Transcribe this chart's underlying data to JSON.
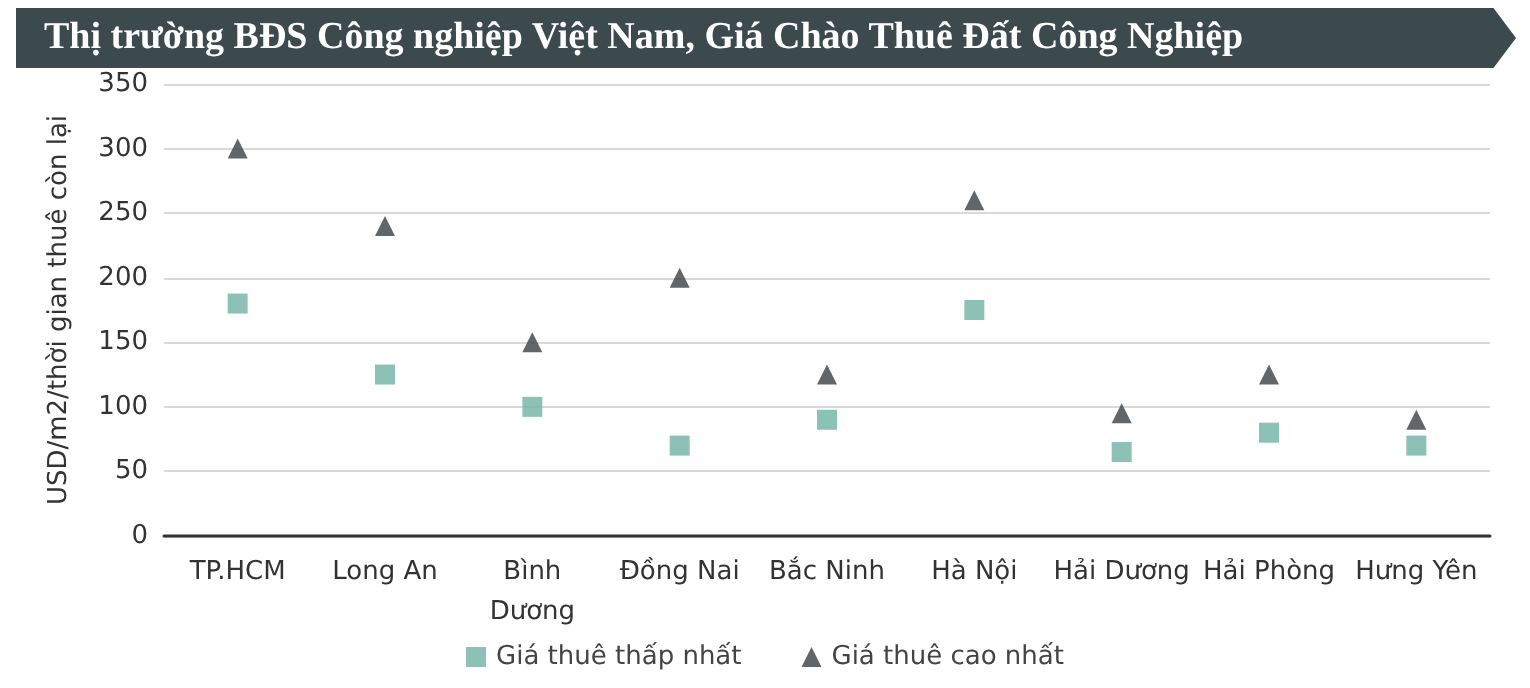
{
  "chart_data": {
    "type": "scatter",
    "title": "Thị trường BĐS Công nghiệp Việt Nam, Giá Chào Thuê Đất Công Nghiệp",
    "ylabel": "USD/m2/thời gian thuê còn lại",
    "categories": [
      "TP.HCM",
      "Long An",
      "Bình\nDương",
      "Đồng Nai",
      "Bắc Ninh",
      "Hà Nội",
      "Hải Dương",
      "Hải Phòng",
      "Hưng Yên"
    ],
    "series": [
      {
        "name": "Giá thuê thấp nhất",
        "color": "#6fb3a3",
        "marker": "square",
        "values": [
          180,
          125,
          100,
          70,
          90,
          175,
          65,
          80,
          70
        ]
      },
      {
        "name": "Giá thuê cao nhất",
        "color": "#3b4043",
        "marker": "triangle",
        "values": [
          300,
          240,
          150,
          200,
          125,
          260,
          95,
          125,
          90
        ]
      }
    ],
    "ylim": [
      0,
      350
    ],
    "yticks": [
      0,
      50,
      100,
      150,
      200,
      250,
      300,
      350
    ],
    "grid": "y",
    "legend": "bottom"
  }
}
